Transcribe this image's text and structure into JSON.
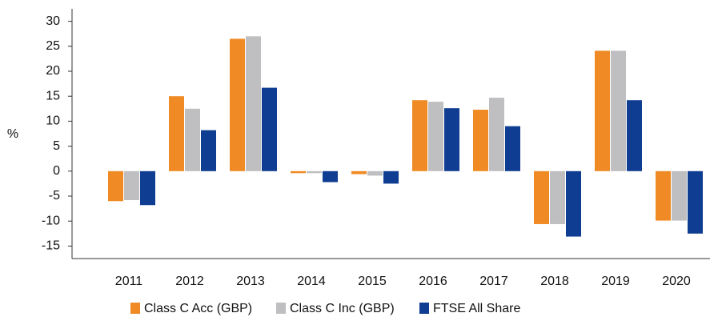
{
  "chart_data": {
    "type": "bar",
    "ylabel": "%",
    "categories": [
      "2011",
      "2012",
      "2013",
      "2014",
      "2015",
      "2016",
      "2017",
      "2018",
      "2019",
      "2020"
    ],
    "series": [
      {
        "name": "Class C Acc (GBP)",
        "color": "#f08a24",
        "values": [
          -6,
          15,
          26.5,
          -0.4,
          -0.6,
          14.2,
          12.3,
          -10.6,
          24.1,
          -9.9
        ]
      },
      {
        "name": "Class C Inc (GBP)",
        "color": "#bfbfc1",
        "values": [
          -5.8,
          12.5,
          27,
          -0.4,
          -0.9,
          13.9,
          14.7,
          -10.6,
          24.1,
          -9.9
        ]
      },
      {
        "name": "FTSE All Share",
        "color": "#0f3d91",
        "values": [
          -6.8,
          8.2,
          16.7,
          -2.2,
          -2.5,
          12.6,
          9,
          -13.1,
          14.2,
          -12.5
        ]
      }
    ],
    "ylim": [
      -17.5,
      32.5
    ],
    "yticks": [
      -15,
      -10,
      -5,
      0,
      5,
      10,
      15,
      20,
      25,
      30
    ],
    "grid": false,
    "legend": "bottom"
  }
}
